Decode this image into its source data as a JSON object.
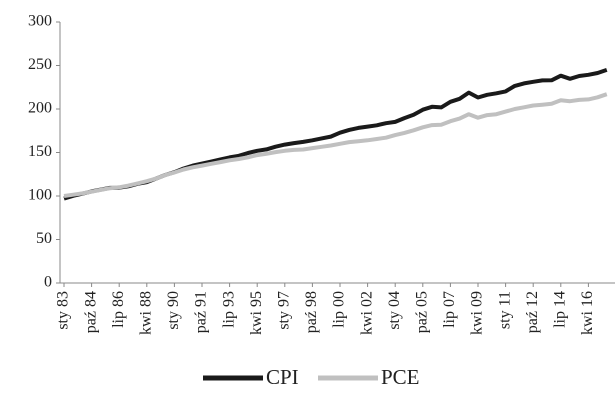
{
  "chart_data": {
    "type": "line",
    "categories": [
      "sty 83",
      null,
      null,
      "paź 84",
      null,
      null,
      "lip 86",
      null,
      null,
      "kwi 88",
      null,
      null,
      "sty 90",
      null,
      null,
      "paź 91",
      null,
      null,
      "lip 93",
      null,
      null,
      "kwi 95",
      null,
      null,
      "sty 97",
      null,
      null,
      "paź 98",
      null,
      null,
      "lip 00",
      null,
      null,
      "kwi 02",
      null,
      null,
      "sty 04",
      null,
      null,
      "paź 05",
      null,
      null,
      "lip 07",
      null,
      null,
      "kwi 09",
      null,
      null,
      "sty 11",
      null,
      null,
      "paź 12",
      null,
      null,
      "lip 14",
      null,
      null,
      "kwi 16",
      null,
      null
    ],
    "series": [
      {
        "name": "CPI",
        "color": "#1a1a1a",
        "values": [
          97,
          100.2,
          102.6,
          105.3,
          107.3,
          109.3,
          109.5,
          111.2,
          114.0,
          116.0,
          120.0,
          124.1,
          127.4,
          131.6,
          135.0,
          137.2,
          139.5,
          141.9,
          144.4,
          146.2,
          149.4,
          151.9,
          153.6,
          156.7,
          159.1,
          160.8,
          162.2,
          164.0,
          166.2,
          168.3,
          172.8,
          176.0,
          178.3,
          179.8,
          181.3,
          183.7,
          185.2,
          189.5,
          193.3,
          199.2,
          202.5,
          201.8,
          208.3,
          211.7,
          218.8,
          213.2,
          216.3,
          218.0,
          220.2,
          226.5,
          229.4,
          231.3,
          232.9,
          233.0,
          238.3,
          234.7,
          237.9,
          239.3,
          241.4,
          244.9
        ]
      },
      {
        "name": "PCE",
        "color": "#c0c0c0",
        "values": [
          100,
          101.5,
          103,
          105,
          107,
          109,
          110,
          112,
          114.5,
          117,
          120,
          124,
          127,
          130.5,
          133,
          135,
          137,
          139,
          141,
          142.5,
          144.5,
          147,
          148.5,
          150.5,
          152,
          153,
          153.5,
          155,
          156.5,
          158,
          160,
          162,
          163,
          164,
          165.5,
          167,
          170,
          172.5,
          175.5,
          179,
          181.5,
          182,
          186,
          189,
          194,
          190,
          193,
          194,
          197,
          200,
          202,
          204,
          205,
          206,
          210,
          209,
          210.5,
          211,
          213.5,
          217
        ]
      }
    ],
    "ylim": [
      0,
      300
    ],
    "yticks": [
      0,
      50,
      100,
      150,
      200,
      250,
      300
    ],
    "grid": false,
    "legend": "bottom"
  }
}
